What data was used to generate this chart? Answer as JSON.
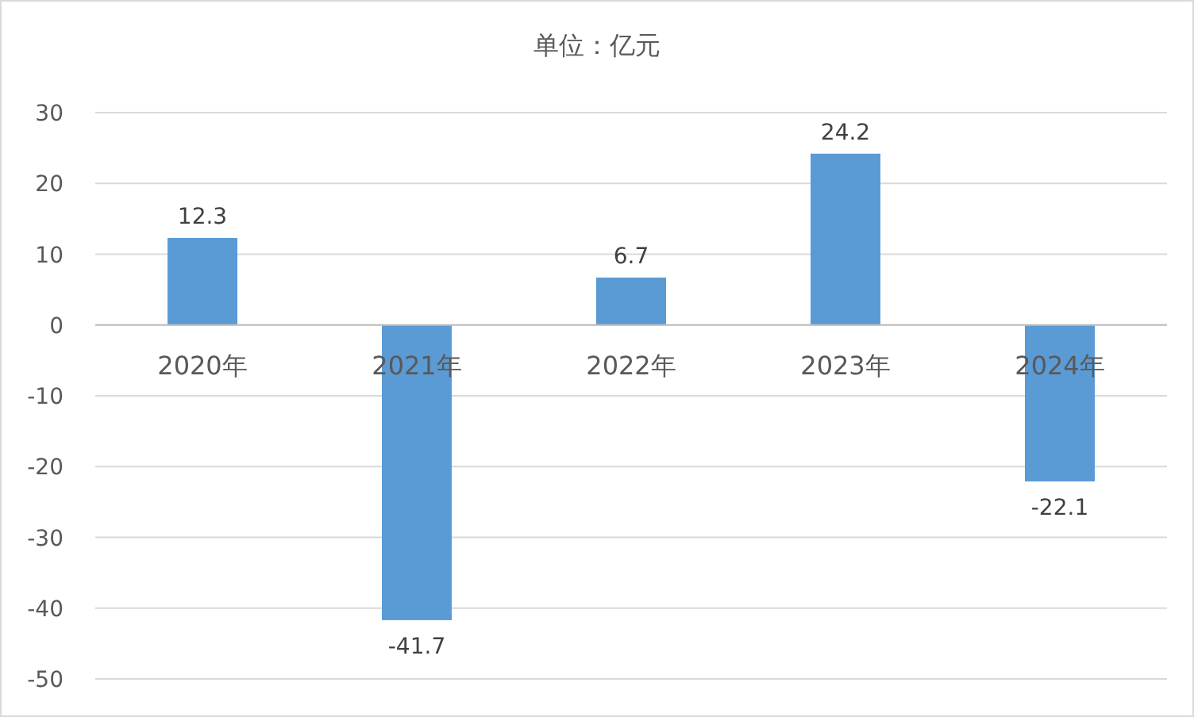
{
  "chart_data": {
    "type": "bar",
    "title": "单位：亿元",
    "categories": [
      "2020年",
      "2021年",
      "2022年",
      "2023年",
      "2024年"
    ],
    "values": [
      12.3,
      -41.7,
      6.7,
      24.2,
      -22.1
    ],
    "color": "#5b9bd5",
    "ylim": [
      -50,
      30
    ],
    "yticks": [
      -50,
      -40,
      -30,
      -20,
      -10,
      0,
      10,
      20,
      30
    ],
    "grid": "y",
    "data_labels": true
  }
}
